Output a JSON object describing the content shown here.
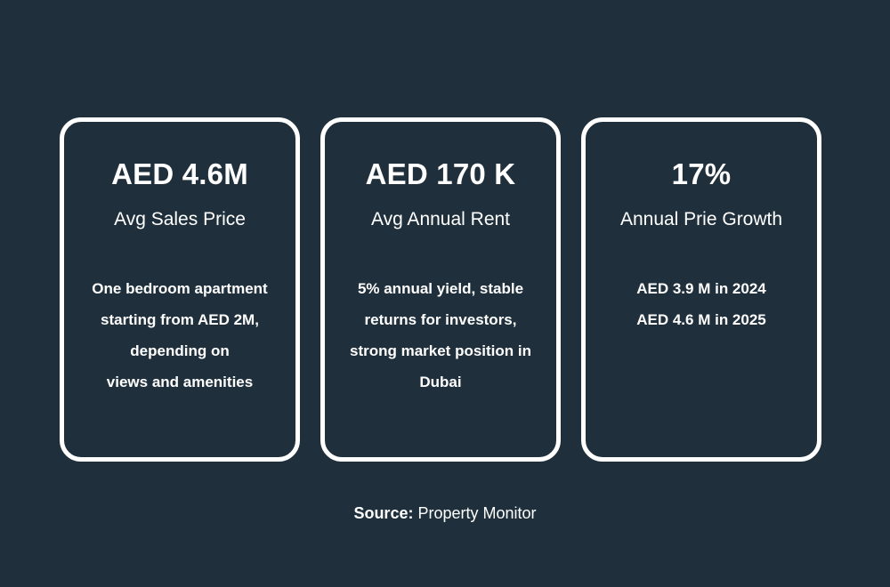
{
  "cards": [
    {
      "value": "AED 4.6M",
      "label": "Avg Sales Price",
      "lines": [
        "One bedroom apartment",
        "starting from AED 2M,",
        "depending on",
        "views and amenities"
      ]
    },
    {
      "value": "AED 170 K",
      "label": "Avg Annual Rent",
      "lines": [
        "5% annual yield, stable",
        "returns for investors,",
        "strong market position in",
        "Dubai"
      ]
    },
    {
      "value": "17%",
      "label": "Annual Prie Growth",
      "lines": [
        "AED 3.9 M in 2024",
        "AED 4.6 M in 2025"
      ]
    }
  ],
  "source": {
    "key": "Source:",
    "value": "Property Monitor"
  },
  "colors": {
    "background": "#1f303c",
    "card_border": "#ffffff",
    "text": "#ffffff"
  }
}
